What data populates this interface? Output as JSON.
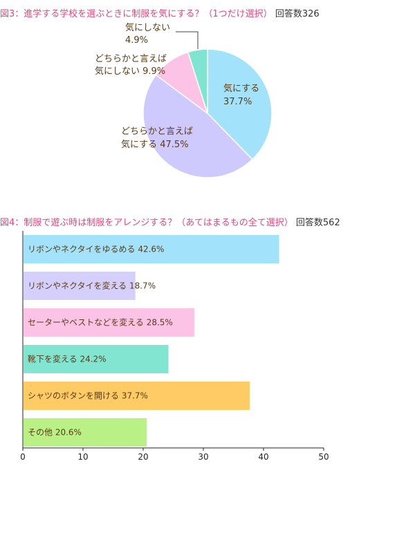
{
  "chart_data": [
    {
      "type": "pie",
      "title": "図3：進学する学校を選ぶときに制服を気にする？（1つだけ選択）",
      "respondents": "回答数326",
      "slices": [
        {
          "label": "気にする",
          "value": 37.7,
          "value_text": "37.7%",
          "color": "#a3e2fb"
        },
        {
          "label": "どちらかと言えば気にする",
          "value": 47.5,
          "value_text": "47.5%",
          "color": "#cfcafd"
        },
        {
          "label": "どちらかと言えば気にしない",
          "value": 9.9,
          "value_text": "9.9%",
          "color": "#fcc3e7"
        },
        {
          "label": "気にしない",
          "value": 4.9,
          "value_text": "4.9%",
          "color": "#7fe5d0"
        }
      ],
      "slice_label_lines": [
        [
          "気にする",
          "37.7%"
        ],
        [
          "どちらかと言えば",
          "気にする 47.5%"
        ],
        [
          "どちらかと言えば",
          "気にしない 9.9%"
        ],
        [
          "気にしない",
          "4.9%"
        ]
      ]
    },
    {
      "type": "bar",
      "orientation": "horizontal",
      "title": "図4：制服で遊ぶ時は制服をアレンジする？（あてはまるもの全て選択）",
      "respondents": "回答数562",
      "categories": [
        "リボンやネクタイをゆるめる",
        "リボンやネクタイを変える",
        "セーターやベストなどを変える",
        "靴下を変える",
        "シャツのボタンを開ける",
        "その他"
      ],
      "values": [
        42.6,
        18.7,
        28.5,
        24.2,
        37.7,
        20.6
      ],
      "value_text": [
        "42.6%",
        "18.7%",
        "28.5%",
        "24.2%",
        "37.7%",
        "20.6%"
      ],
      "colors": [
        "#a3e2fb",
        "#d5d0fb",
        "#fcc3e7",
        "#82e5d2",
        "#fecb64",
        "#baf187"
      ],
      "xlim": [
        0,
        50
      ],
      "xticks": [
        "0",
        "10",
        "20",
        "30",
        "40",
        "50"
      ]
    }
  ]
}
